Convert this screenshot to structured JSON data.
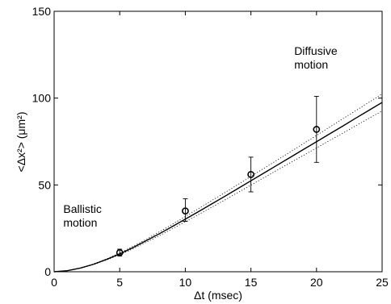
{
  "chart_data": {
    "type": "scatter",
    "xlabel": "Δt (msec)",
    "ylabel": "<Δx²> (μm²)",
    "xlim": [
      0,
      25
    ],
    "ylim": [
      0,
      150
    ],
    "x_ticks": [
      0,
      5,
      10,
      15,
      20,
      25
    ],
    "y_ticks": [
      0,
      50,
      100,
      150
    ],
    "grid": false,
    "points": [
      {
        "x": 5,
        "y": 11,
        "err_low": 9,
        "err_high": 13
      },
      {
        "x": 10,
        "y": 35,
        "err_low": 29,
        "err_high": 42
      },
      {
        "x": 15,
        "y": 56,
        "err_low": 46,
        "err_high": 66
      },
      {
        "x": 20,
        "y": 82,
        "err_low": 63,
        "err_high": 101
      }
    ],
    "fit": {
      "x": [
        0,
        1,
        2,
        3,
        4,
        5,
        6,
        7,
        8,
        9,
        10,
        11,
        12,
        13,
        14,
        15,
        16,
        17,
        18,
        19,
        20,
        21,
        22,
        23,
        24,
        25
      ],
      "y": [
        0,
        0.6,
        2.1,
        4.3,
        7.1,
        10.3,
        13.9,
        17.8,
        21.8,
        26.0,
        30.3,
        34.6,
        39.0,
        43.4,
        47.9,
        52.4,
        56.9,
        61.4,
        65.9,
        70.4,
        74.9,
        79.4,
        83.9,
        88.5,
        93.0,
        97.5
      ]
    },
    "fit_upper": {
      "x": [
        0,
        1,
        2,
        3,
        4,
        5,
        6,
        7,
        8,
        9,
        10,
        11,
        12,
        13,
        14,
        15,
        16,
        17,
        18,
        19,
        20,
        21,
        22,
        23,
        24,
        25
      ],
      "y": [
        0,
        0.6,
        2.2,
        4.5,
        7.4,
        10.8,
        14.6,
        18.6,
        22.9,
        27.3,
        31.8,
        36.3,
        40.9,
        45.5,
        50.2,
        54.9,
        59.6,
        64.3,
        69.0,
        73.8,
        78.5,
        83.3,
        88.1,
        92.8,
        97.6,
        102.4
      ]
    },
    "fit_lower": {
      "x": [
        0,
        1,
        2,
        3,
        4,
        5,
        6,
        7,
        8,
        9,
        10,
        11,
        12,
        13,
        14,
        15,
        16,
        17,
        18,
        19,
        20,
        21,
        22,
        23,
        24,
        25
      ],
      "y": [
        0,
        0.6,
        2.0,
        4.1,
        6.8,
        9.8,
        13.2,
        16.9,
        20.7,
        24.7,
        28.8,
        32.9,
        37.1,
        41.3,
        45.6,
        49.9,
        54.2,
        58.5,
        62.8,
        67.0,
        71.3,
        75.6,
        79.8,
        84.1,
        88.4,
        92.6
      ]
    },
    "annotations": [
      {
        "id": "ballistic",
        "lines": [
          "Ballistic",
          "motion"
        ],
        "x": 0.7,
        "y": 34
      },
      {
        "id": "diffusive",
        "lines": [
          "Diffusive",
          "motion"
        ],
        "x": 18.3,
        "y": 125
      }
    ]
  }
}
